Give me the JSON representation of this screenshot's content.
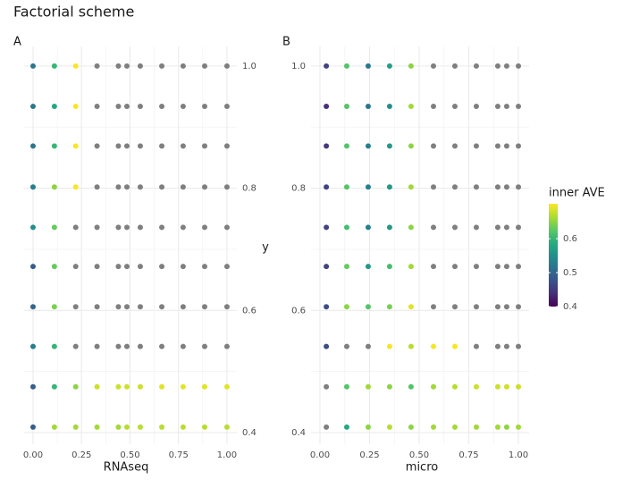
{
  "title": "Factorial scheme",
  "y_label": "y",
  "colorbar": {
    "title": "inner AVE",
    "lim": [
      0.4,
      0.703
    ],
    "ticks": [
      0.4,
      0.5,
      0.6
    ],
    "palette": "viridis",
    "na_color": "#7f7f7f"
  },
  "chart_data": [
    {
      "type": "scatter",
      "panel": "A",
      "x_label": "RNAseq",
      "x": [
        0,
        0.11,
        0.22,
        0.33,
        0.44,
        0.484,
        0.553,
        0.664,
        0.774,
        0.885,
        1.0
      ],
      "y": [
        1.0,
        0.934,
        0.869,
        0.802,
        0.736,
        0.672,
        0.606,
        0.541,
        0.475,
        0.409
      ],
      "values": [
        [
          0.52,
          0.6,
          0.7,
          null,
          null,
          null,
          null,
          null,
          null,
          null,
          null
        ],
        [
          0.52,
          0.58,
          0.7,
          null,
          null,
          null,
          null,
          null,
          null,
          null,
          null
        ],
        [
          0.52,
          0.6,
          0.7,
          null,
          null,
          null,
          null,
          null,
          null,
          null,
          null
        ],
        [
          0.53,
          0.65,
          0.7,
          null,
          null,
          null,
          null,
          null,
          null,
          null,
          null
        ],
        [
          0.55,
          0.63,
          null,
          null,
          null,
          null,
          null,
          null,
          null,
          null,
          null
        ],
        [
          0.49,
          0.63,
          null,
          null,
          null,
          null,
          null,
          null,
          null,
          null,
          null
        ],
        [
          0.5,
          0.64,
          null,
          null,
          null,
          null,
          null,
          null,
          null,
          null,
          null
        ],
        [
          0.53,
          0.6,
          null,
          null,
          null,
          null,
          null,
          null,
          null,
          null,
          null
        ],
        [
          0.49,
          0.6,
          0.65,
          0.68,
          0.68,
          0.68,
          0.68,
          0.69,
          0.69,
          0.69,
          0.69
        ],
        [
          0.49,
          0.66,
          0.66,
          0.66,
          0.66,
          0.67,
          0.67,
          0.67,
          0.67,
          0.67,
          0.67
        ]
      ],
      "xlim": [
        -0.046,
        1.051
      ],
      "ylim": [
        0.381,
        1.032
      ],
      "xticks": [
        {
          "value": 0,
          "label": "0.00"
        },
        {
          "value": 0.25,
          "label": "0.25"
        },
        {
          "value": 0.5,
          "label": "0.50"
        },
        {
          "value": 0.75,
          "label": "0.75"
        },
        {
          "value": 1,
          "label": "1.00"
        }
      ],
      "yticks": [
        0.4,
        0.6,
        0.8,
        {
          "value": 1.0,
          "label": "1.0"
        }
      ]
    },
    {
      "type": "scatter",
      "panel": "B",
      "x_label": "micro",
      "x": [
        0.032,
        0.135,
        0.243,
        0.351,
        0.459,
        0.572,
        0.68,
        0.788,
        0.896,
        0.941,
        1.0
      ],
      "y": [
        1.0,
        0.934,
        0.869,
        0.802,
        0.736,
        0.672,
        0.606,
        0.541,
        0.475,
        0.409
      ],
      "values": [
        [
          0.46,
          0.62,
          0.52,
          0.57,
          0.65,
          null,
          null,
          null,
          null,
          null,
          null
        ],
        [
          0.44,
          0.62,
          0.52,
          0.55,
          0.66,
          null,
          null,
          null,
          null,
          null,
          null
        ],
        [
          0.45,
          0.62,
          0.53,
          0.56,
          0.65,
          null,
          null,
          null,
          null,
          null,
          null
        ],
        [
          0.46,
          0.62,
          0.53,
          0.56,
          0.66,
          null,
          null,
          null,
          null,
          null,
          null
        ],
        [
          0.46,
          0.61,
          0.53,
          0.56,
          0.65,
          null,
          null,
          null,
          null,
          null,
          null
        ],
        [
          0.46,
          0.63,
          0.56,
          0.61,
          0.66,
          null,
          null,
          null,
          null,
          null,
          null
        ],
        [
          0.47,
          0.65,
          0.62,
          0.64,
          0.69,
          null,
          null,
          null,
          null,
          null,
          null
        ],
        [
          0.47,
          null,
          null,
          0.7,
          0.67,
          0.7,
          0.7,
          null,
          null,
          null,
          null
        ],
        [
          null,
          0.62,
          0.66,
          0.65,
          0.62,
          0.66,
          0.67,
          0.68,
          0.68,
          0.68,
          0.68
        ],
        [
          null,
          0.58,
          0.65,
          0.67,
          0.65,
          0.66,
          0.66,
          0.66,
          0.66,
          0.65,
          0.66
        ]
      ],
      "xlim": [
        -0.045,
        1.054
      ],
      "ylim": [
        0.381,
        1.032
      ],
      "xticks": [
        {
          "value": 0,
          "label": "0.00"
        },
        {
          "value": 0.25,
          "label": "0.25"
        },
        {
          "value": 0.5,
          "label": "0.50"
        },
        {
          "value": 0.75,
          "label": "0.75"
        },
        {
          "value": 1,
          "label": "1.00"
        }
      ],
      "yticks": [
        0.4,
        0.6,
        0.8,
        {
          "value": 1.0,
          "label": "1.0"
        }
      ]
    }
  ]
}
